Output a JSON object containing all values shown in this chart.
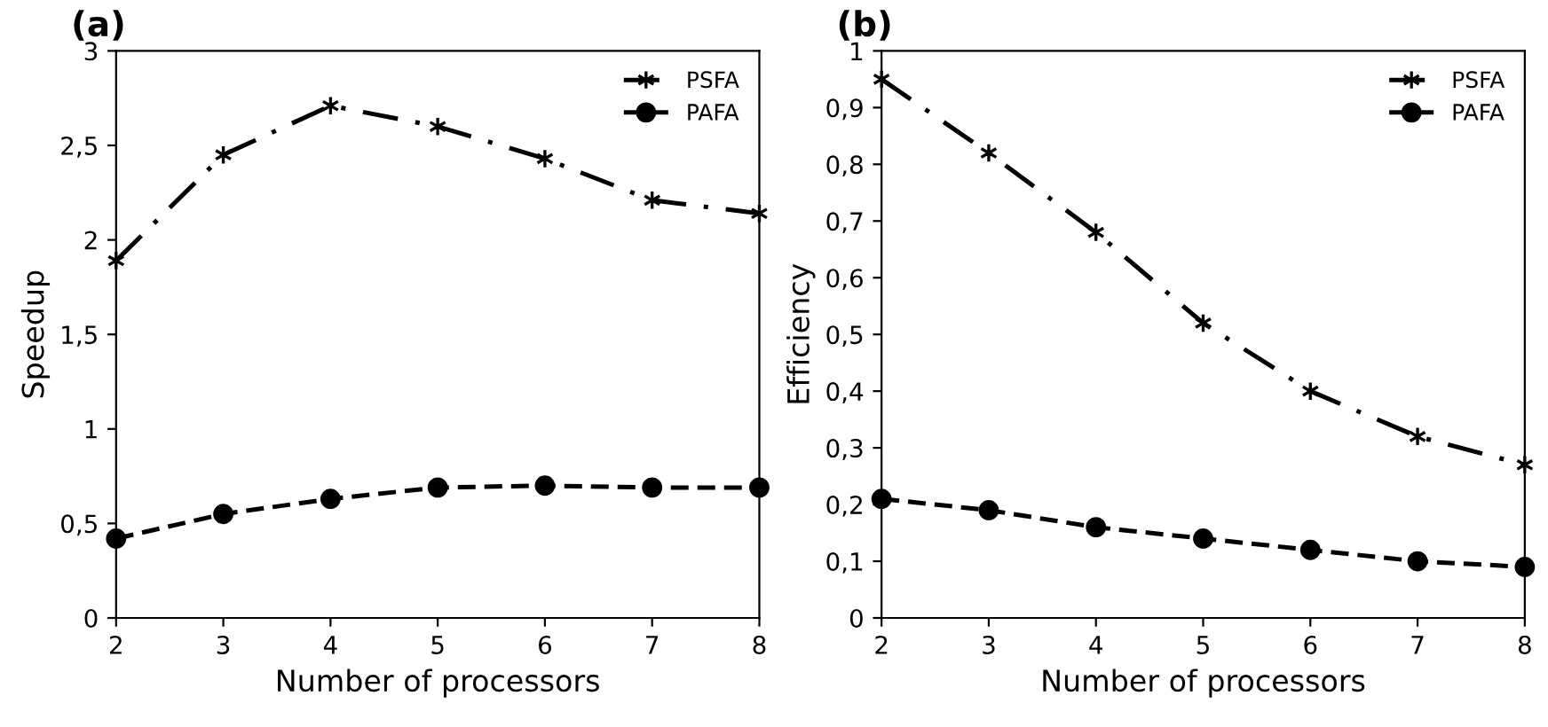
{
  "chart_data": [
    {
      "type": "line",
      "title": "(a)",
      "xlabel": "Number of processors",
      "ylabel": "Speedup",
      "x": [
        2,
        3,
        4,
        5,
        6,
        7,
        8
      ],
      "series": [
        {
          "name": "PSFA",
          "color": "#000000",
          "marker": "cross",
          "line_style": "dashdot",
          "values": [
            1.89,
            2.45,
            2.71,
            2.6,
            2.43,
            2.21,
            2.14
          ]
        },
        {
          "name": "PAFA",
          "color": "#000000",
          "marker": "circle",
          "line_style": "dashed",
          "values": [
            0.42,
            0.55,
            0.63,
            0.69,
            0.7,
            0.69,
            0.69
          ]
        }
      ],
      "xlim": [
        2,
        8
      ],
      "xticks": [
        2,
        3,
        4,
        5,
        6,
        7,
        8
      ],
      "ylim": [
        0,
        3
      ],
      "yticks": [
        0,
        {
          "value": 0.5,
          "label": "0,5"
        },
        1,
        {
          "value": 1.5,
          "label": "1,5"
        },
        2,
        {
          "value": 2.5,
          "label": "2,5"
        },
        3
      ],
      "grid": false,
      "legend": "top right"
    },
    {
      "type": "line",
      "title": "(b)",
      "xlabel": "Number of processors",
      "ylabel": "Efficiency",
      "x": [
        2,
        3,
        4,
        5,
        6,
        7,
        8
      ],
      "series": [
        {
          "name": "PSFA",
          "color": "#000000",
          "marker": "cross",
          "line_style": "dashdot",
          "values": [
            0.95,
            0.82,
            0.68,
            0.52,
            0.4,
            0.32,
            0.27
          ]
        },
        {
          "name": "PAFA",
          "color": "#000000",
          "marker": "circle",
          "line_style": "dashed",
          "values": [
            0.21,
            0.19,
            0.16,
            0.14,
            0.12,
            0.1,
            0.09
          ]
        }
      ],
      "xlim": [
        2,
        8
      ],
      "xticks": [
        2,
        3,
        4,
        5,
        6,
        7,
        8
      ],
      "ylim": [
        0,
        1
      ],
      "yticks": [
        0,
        {
          "value": 0.1,
          "label": "0,1"
        },
        {
          "value": 0.2,
          "label": "0,2"
        },
        {
          "value": 0.3,
          "label": "0,3"
        },
        {
          "value": 0.4,
          "label": "0,4"
        },
        {
          "value": 0.5,
          "label": "0,5"
        },
        {
          "value": 0.6,
          "label": "0,6"
        },
        {
          "value": 0.7,
          "label": "0,7"
        },
        {
          "value": 0.8,
          "label": "0,8"
        },
        {
          "value": 0.9,
          "label": "0,9"
        },
        1
      ],
      "grid": false,
      "legend": "top right"
    }
  ]
}
